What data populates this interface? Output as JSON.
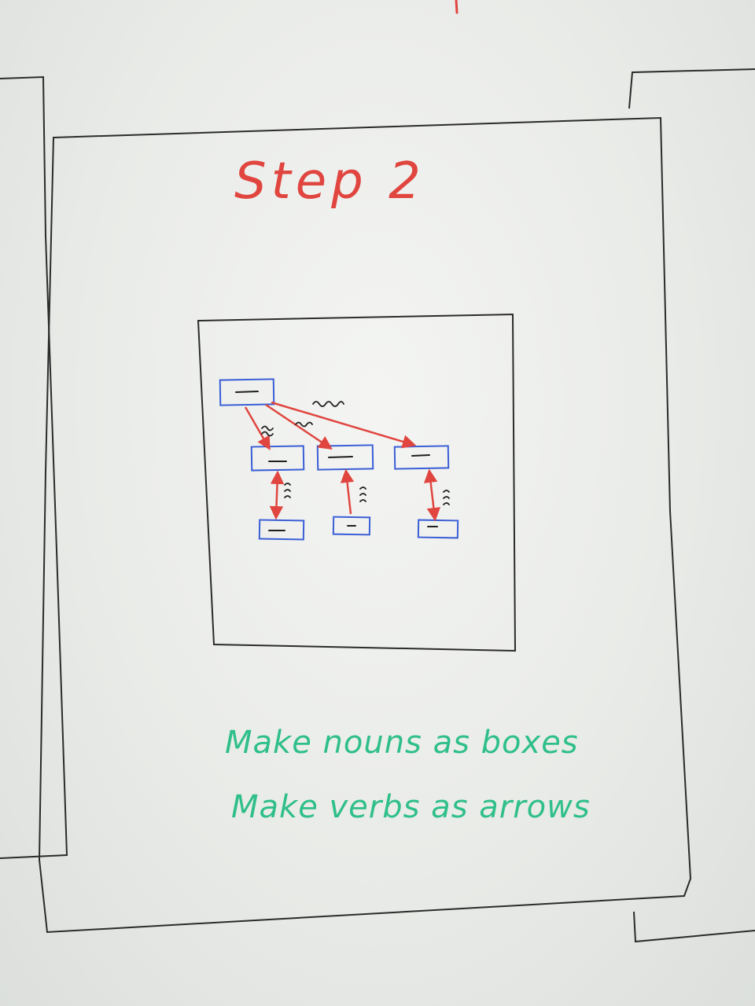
{
  "title": "Step 2",
  "notes": [
    "Make nouns as boxes",
    "Make verbs as arrows"
  ],
  "colors": {
    "title": "#e0463f",
    "notes": "#2fbf8a",
    "box_stroke": "#3a5ed6",
    "arrow": "#e0463f",
    "frame": "#2b2b2b",
    "board": "#eceeeb"
  }
}
